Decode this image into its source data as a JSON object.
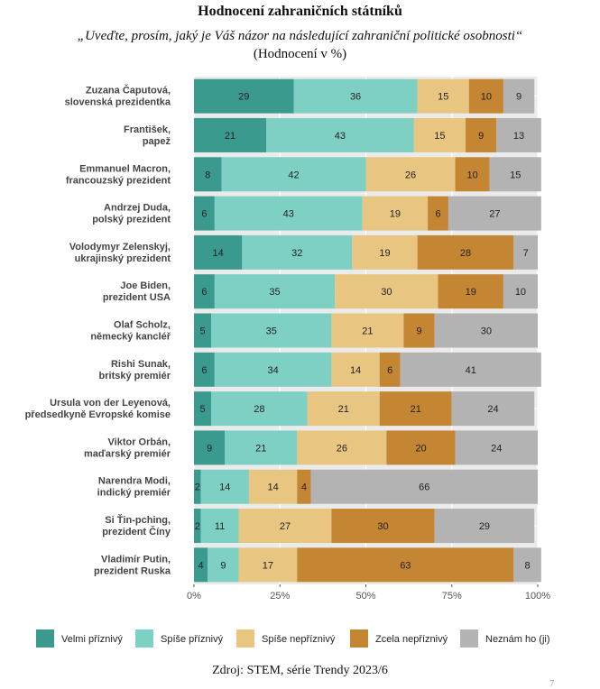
{
  "header": {
    "title": "Hodnocení zahraničních státníků",
    "subtitle": "„Uveďte, prosím, jaký je Váš názor na následující zahraniční politické osobnosti“",
    "subtitle2": "(Hodnocení v %)"
  },
  "footer": {
    "source": "Zdroj: STEM, série Trendy 2023/6",
    "page_number": "7"
  },
  "chart_data": {
    "type": "bar",
    "orientation": "horizontal",
    "stacked": true,
    "xlim": [
      0,
      100
    ],
    "x_ticks": [
      "0%",
      "25%",
      "50%",
      "75%",
      "100%"
    ],
    "legend_position": "bottom",
    "grid": true,
    "categories": [
      [
        "Zuzana Čaputová,",
        "slovenská prezidentka"
      ],
      [
        "František,",
        "papež"
      ],
      [
        "Emmanuel Macron,",
        "francouzský prezident"
      ],
      [
        "Andrzej Duda,",
        "polský prezident"
      ],
      [
        "Volodymyr Zelenskyj,",
        "ukrajinský prezident"
      ],
      [
        "Joe Biden,",
        "prezident USA"
      ],
      [
        "Olaf Scholz,",
        "německý kancléř"
      ],
      [
        "Rishi Sunak,",
        "britský premiér"
      ],
      [
        "Ursula von der Leyenová,",
        "předsedkyně Evropské komise"
      ],
      [
        "Viktor Orbán,",
        "maďarský premiér"
      ],
      [
        "Narendra Modi,",
        "indický premiér"
      ],
      [
        "Si Ťin-pching,",
        "prezident Číny"
      ],
      [
        "Vladimír Putin,",
        "prezident Ruska"
      ]
    ],
    "series": [
      {
        "name": "Velmi příznivý",
        "color": "#3a9a8e",
        "values": [
          29,
          21,
          8,
          6,
          14,
          6,
          5,
          6,
          5,
          9,
          2,
          2,
          4
        ]
      },
      {
        "name": "Spíše příznivý",
        "color": "#7fd0c4",
        "values": [
          36,
          43,
          42,
          43,
          32,
          35,
          35,
          34,
          28,
          21,
          14,
          11,
          9
        ]
      },
      {
        "name": "Spíše nepříznivý",
        "color": "#e8c681",
        "values": [
          15,
          15,
          26,
          19,
          19,
          30,
          21,
          14,
          21,
          26,
          14,
          27,
          17
        ]
      },
      {
        "name": "Zcela nepříznivý",
        "color": "#c48632",
        "values": [
          10,
          9,
          10,
          6,
          28,
          19,
          9,
          6,
          21,
          20,
          4,
          30,
          63
        ]
      },
      {
        "name": "Neznám ho (ji)",
        "color": "#b3b3b3",
        "values": [
          9,
          13,
          15,
          27,
          7,
          10,
          30,
          41,
          24,
          24,
          66,
          29,
          8
        ]
      }
    ]
  }
}
